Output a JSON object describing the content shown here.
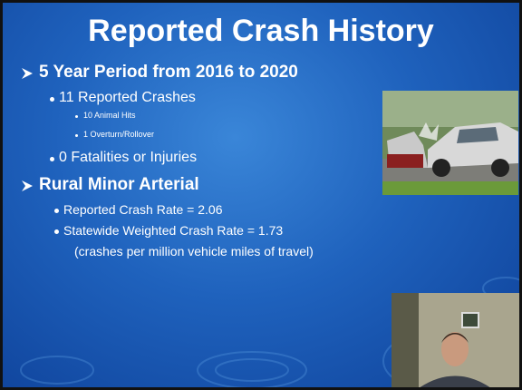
{
  "title": "Reported Crash History",
  "sections": [
    {
      "heading": "5 Year Period from 2016 to 2020",
      "items": [
        {
          "text": "11 Reported Crashes",
          "subitems": [
            "10 Animal Hits",
            "1 Overturn/Rollover"
          ]
        },
        {
          "text": "0 Fatalities or Injuries"
        }
      ]
    },
    {
      "heading": "Rural Minor Arterial",
      "items": [
        {
          "text": "Reported Crash Rate = 2.06"
        },
        {
          "text": "Statewide Weighted Crash Rate = 1.73",
          "note": "(crashes per million vehicle miles of travel)"
        }
      ]
    }
  ]
}
